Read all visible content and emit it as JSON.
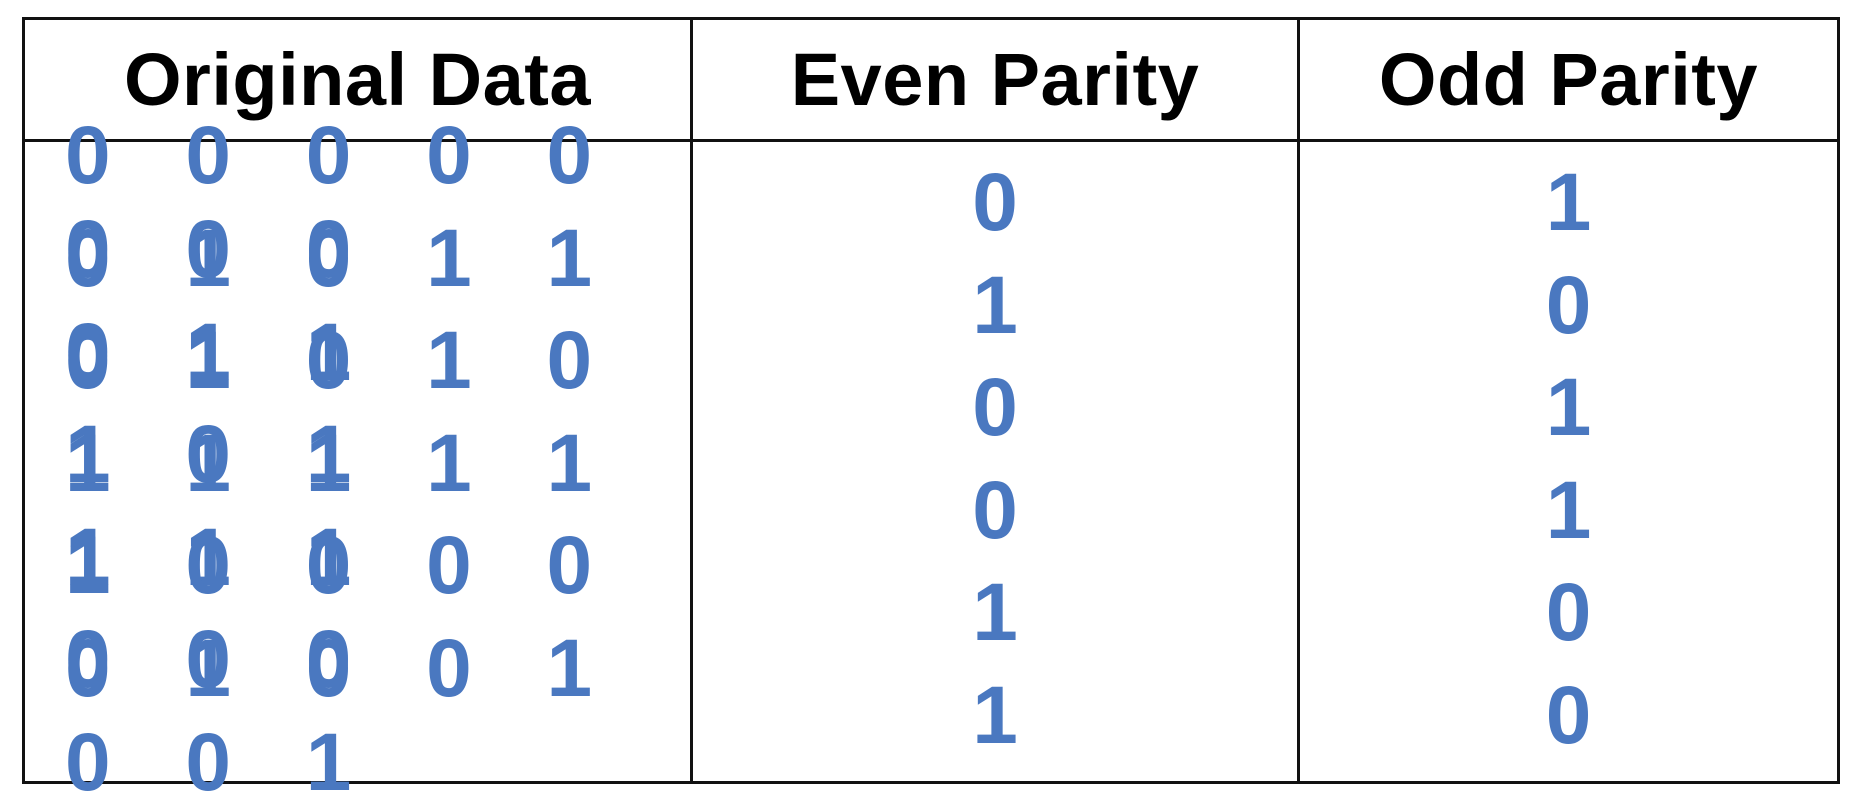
{
  "table": {
    "headers": [
      "Original Data",
      "Even Parity",
      "Odd Parity"
    ],
    "rows": [
      {
        "data": "0 0 0 0 0 0 0 0",
        "even": "0",
        "odd": "1"
      },
      {
        "data": "0 1 0 1 1 0 1 1",
        "even": "1",
        "odd": "0"
      },
      {
        "data": "0 1 0 1 0 1 0 1",
        "even": "0",
        "odd": "1"
      },
      {
        "data": "1 1 1 1 1 1 1 1",
        "even": "0",
        "odd": "1"
      },
      {
        "data": "1 0 0 0 0 0 0 0",
        "even": "1",
        "odd": "0"
      },
      {
        "data": "0 1 0 0 1 0 0 1",
        "even": "1",
        "odd": "0"
      }
    ]
  },
  "colors": {
    "value_text": "#4a78c0",
    "header_text": "#000000",
    "border": "#111111",
    "background": "#ffffff"
  }
}
